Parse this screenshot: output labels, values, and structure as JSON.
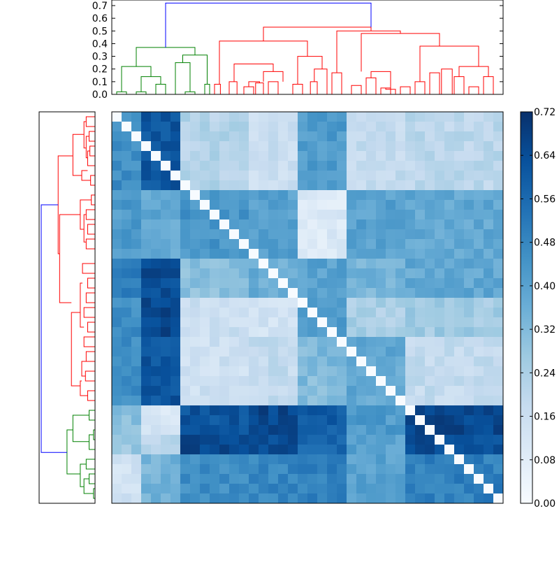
{
  "chart_data": [
    {
      "type": "dendrogram",
      "orientation": "top",
      "y_ticks": [
        "0.0",
        "0.1",
        "0.2",
        "0.3",
        "0.4",
        "0.5",
        "0.6",
        "0.7"
      ],
      "ylim": [
        0,
        0.75
      ],
      "leaf_count": 40,
      "colors": {
        "cluster_a": "#008000",
        "cluster_b": "#ff0000",
        "link": "#0000ff"
      },
      "root_height": 0.72,
      "cluster_a_leaves": 10,
      "cluster_b_leaves": 30
    },
    {
      "type": "dendrogram",
      "orientation": "left",
      "leaf_count": 40,
      "colors": {
        "cluster_a": "#008000",
        "cluster_b": "#ff0000",
        "link": "#0000ff"
      },
      "cluster_b_leaves": 30,
      "cluster_a_leaves": 10
    },
    {
      "type": "heatmap",
      "rows": 40,
      "columns": 40,
      "colormap": "Blues",
      "value_range": [
        0,
        0.72
      ],
      "diagonal": 0
    },
    {
      "type": "colorbar",
      "ticks": [
        "0.00",
        "0.08",
        "0.16",
        "0.24",
        "0.32",
        "0.40",
        "0.48",
        "0.56",
        "0.64",
        "0.72"
      ],
      "range": [
        0,
        0.72
      ]
    }
  ]
}
